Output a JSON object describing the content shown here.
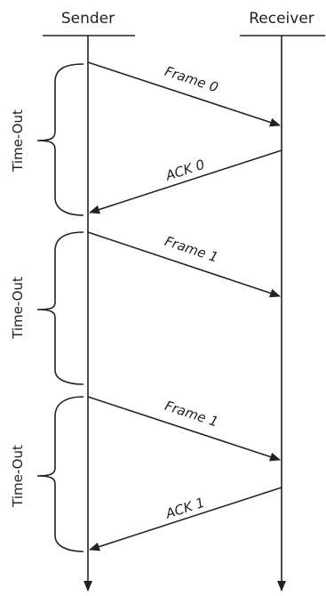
{
  "lifelines": {
    "sender": "Sender",
    "receiver": "Receiver"
  },
  "messages": [
    {
      "label": "Frame 0"
    },
    {
      "label": "ACK 0"
    },
    {
      "label": "Frame 1"
    },
    {
      "label": "Frame 1"
    },
    {
      "label": "ACK 1"
    }
  ],
  "timeouts": [
    {
      "label": "Time-Out"
    },
    {
      "label": "Time-Out"
    },
    {
      "label": "Time-Out"
    }
  ],
  "colors": {
    "stroke": "#222222",
    "background": "#ffffff"
  }
}
